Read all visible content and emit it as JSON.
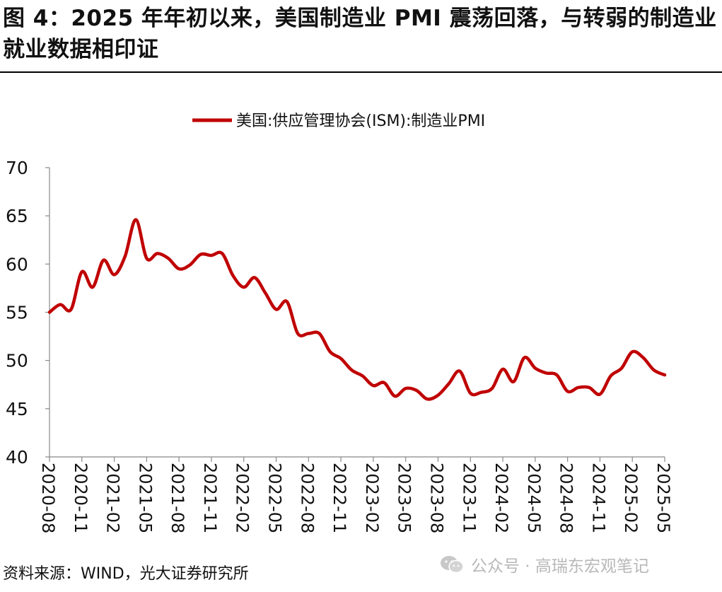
{
  "figure": {
    "title": "图 4：2025 年年初以来，美国制造业 PMI 震荡回落，与转弱的制造业就业数据相印证",
    "source": "资料来源：WIND，光大证券研究所",
    "watermark": "公众号 · 高瑞东宏观笔记"
  },
  "chart_data": {
    "type": "line",
    "title": "",
    "xlabel": "",
    "ylabel": "",
    "ylim": [
      40,
      70
    ],
    "yticks": [
      40,
      45,
      50,
      55,
      60,
      65,
      70
    ],
    "xtick_labels": [
      "2020-08",
      "2020-11",
      "2021-02",
      "2021-05",
      "2021-08",
      "2021-11",
      "2022-02",
      "2022-05",
      "2022-08",
      "2022-11",
      "2023-02",
      "2023-05",
      "2023-08",
      "2023-11",
      "2024-02",
      "2024-05",
      "2024-08",
      "2024-11",
      "2025-02",
      "2025-05"
    ],
    "legend_position": "top-center",
    "grid": false,
    "series": [
      {
        "name": "美国:供应管理协会(ISM):制造业PMI",
        "color": "#c00000",
        "x": [
          "2020-08",
          "2020-09",
          "2020-10",
          "2020-11",
          "2020-12",
          "2021-01",
          "2021-02",
          "2021-03",
          "2021-04",
          "2021-05",
          "2021-06",
          "2021-07",
          "2021-08",
          "2021-09",
          "2021-10",
          "2021-11",
          "2021-12",
          "2022-01",
          "2022-02",
          "2022-03",
          "2022-04",
          "2022-05",
          "2022-06",
          "2022-07",
          "2022-08",
          "2022-09",
          "2022-10",
          "2022-11",
          "2022-12",
          "2023-01",
          "2023-02",
          "2023-03",
          "2023-04",
          "2023-05",
          "2023-06",
          "2023-07",
          "2023-08",
          "2023-09",
          "2023-10",
          "2023-11",
          "2023-12",
          "2024-01",
          "2024-02",
          "2024-03",
          "2024-04",
          "2024-05",
          "2024-06",
          "2024-07",
          "2024-08",
          "2024-09",
          "2024-10",
          "2024-11",
          "2024-12",
          "2025-01",
          "2025-02",
          "2025-03",
          "2025-04",
          "2025-05"
        ],
        "values": [
          55.0,
          55.8,
          55.3,
          59.2,
          57.6,
          60.4,
          58.9,
          60.8,
          64.6,
          60.6,
          61.1,
          60.6,
          59.5,
          59.9,
          61.0,
          60.9,
          61.1,
          58.8,
          57.6,
          58.6,
          57.0,
          55.3,
          56.1,
          52.8,
          52.8,
          52.8,
          50.9,
          50.2,
          49.0,
          48.4,
          47.4,
          47.7,
          46.3,
          47.1,
          46.9,
          46.0,
          46.4,
          47.6,
          48.9,
          46.6,
          46.7,
          47.1,
          49.1,
          47.8,
          50.3,
          49.2,
          48.7,
          48.5,
          46.8,
          47.2,
          47.2,
          46.5,
          48.4,
          49.2,
          50.9,
          50.3,
          49.0,
          48.5
        ]
      }
    ]
  }
}
